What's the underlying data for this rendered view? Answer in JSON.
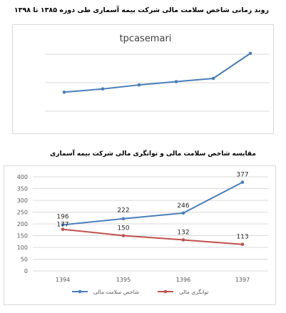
{
  "charts": [
    {
      "heading": "روند زمانی شاخص سلامت مالی شرکت بیمه آسماری طی دوره ۱۳۸۵ تا ۱۳۹۸",
      "chart_data": {
        "type": "line",
        "title": "tpcasemari",
        "y_ticks_labeled": false,
        "grid": true,
        "series": [
          {
            "name": "",
            "color": "#4a7ebb",
            "values": [
              0.29,
              0.31,
              0.335,
              0.355,
              0.375,
              0.53
            ]
          }
        ]
      }
    },
    {
      "heading": "مقایسه شاخص سلامت مالی و توانگری مالی شرکت بیمه آسماری",
      "chart_data": {
        "type": "line",
        "categories": [
          "1394",
          "1395",
          "1396",
          "1397"
        ],
        "ylim": [
          0,
          400
        ],
        "y_ticks": [
          "0",
          "50",
          "100",
          "150",
          "200",
          "250",
          "300",
          "350",
          "400"
        ],
        "grid": true,
        "legend_position": "bottom",
        "series": [
          {
            "name": "شاخص سلامت مالی",
            "color": "#4a7ebb",
            "values": [
              196,
              222,
              246,
              377
            ]
          },
          {
            "name": "توانگری مالی",
            "color": "#c0504d",
            "values": [
              177,
              150,
              132,
              113
            ]
          }
        ]
      }
    }
  ]
}
